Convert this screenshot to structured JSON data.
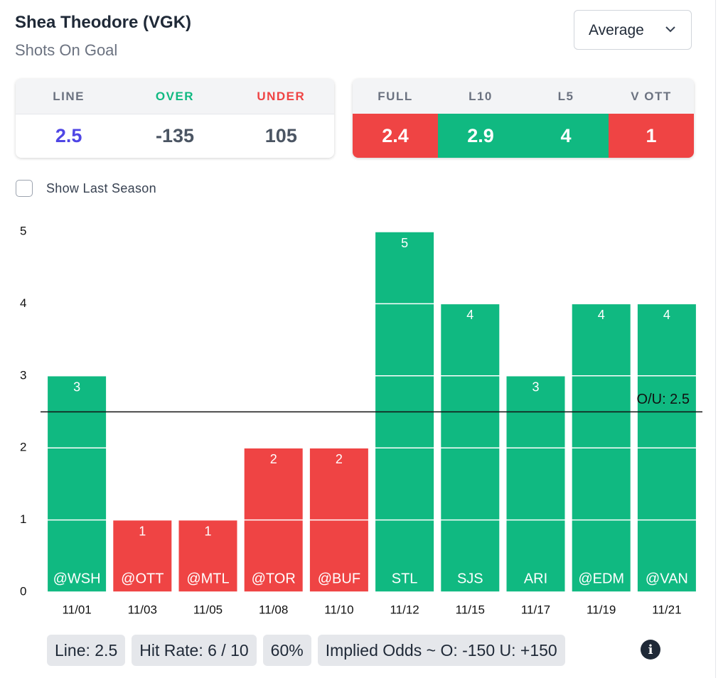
{
  "header": {
    "title": "Shea Theodore (VGK)",
    "subtitle": "Shots On Goal",
    "dropdown": "Average"
  },
  "line_table": {
    "headers": [
      "LINE",
      "OVER",
      "UNDER"
    ],
    "values": [
      "2.5",
      "-135",
      "105"
    ]
  },
  "splits_table": {
    "headers": [
      "FULL",
      "L10",
      "L5",
      "V OTT"
    ],
    "values": [
      "2.4",
      "2.9",
      "4",
      "1"
    ],
    "colors": [
      "#ef4444",
      "#10b981",
      "#10b981",
      "#ef4444"
    ]
  },
  "checkbox_label": "Show Last Season",
  "chart_data": {
    "type": "bar",
    "categories": [
      "11/01",
      "11/03",
      "11/05",
      "11/08",
      "11/10",
      "11/12",
      "11/15",
      "11/17",
      "11/19",
      "11/21"
    ],
    "opponents": [
      "@WSH",
      "@OTT",
      "@MTL",
      "@TOR",
      "@BUF",
      "STL",
      "SJS",
      "ARI",
      "@EDM",
      "@VAN"
    ],
    "values": [
      3,
      1,
      1,
      2,
      2,
      5,
      4,
      3,
      4,
      4
    ],
    "over_color": "#10b981",
    "under_color": "#ef4444",
    "ylim": [
      0,
      5
    ],
    "yticks": [
      0,
      1,
      2,
      3,
      4,
      5
    ],
    "grid": true,
    "reference_line": {
      "value": 2.5,
      "label": "O/U: 2.5"
    }
  },
  "footer": {
    "chips": [
      "Line: 2.5",
      "Hit Rate: 6 / 10",
      "60%",
      "Implied Odds ~ O: -150 U: +150"
    ]
  }
}
